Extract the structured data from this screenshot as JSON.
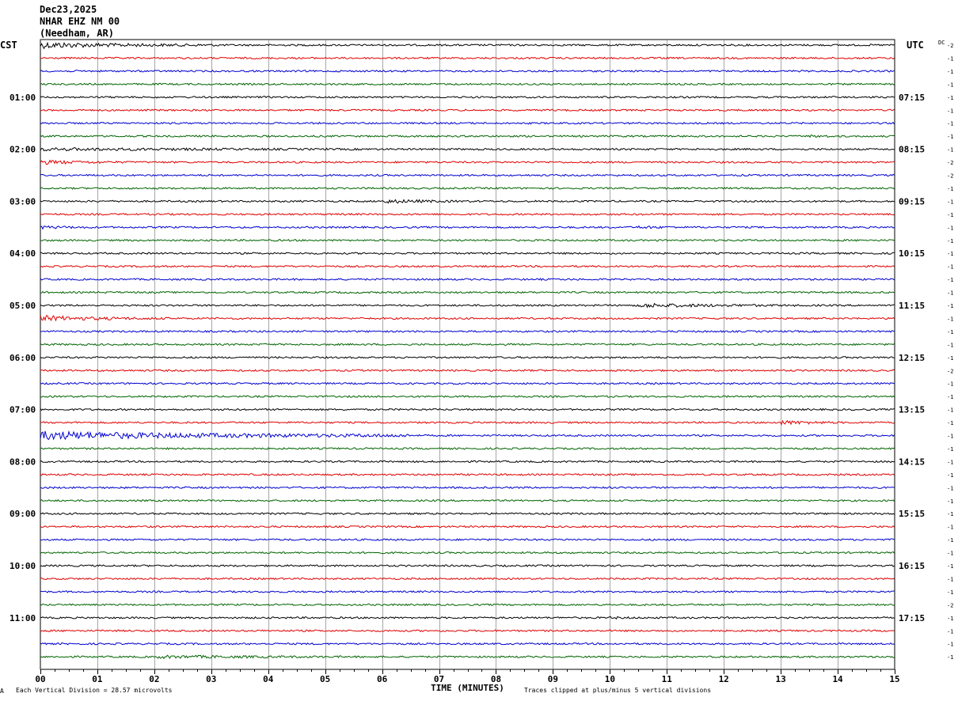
{
  "header": {
    "date": "Dec23,2025",
    "station": "NHAR EHZ NM 00",
    "location": "(Needham, AR)"
  },
  "left_tz": "CST",
  "right_tz": "UTC",
  "dc_label": "DC",
  "footer": {
    "division": "Each Vertical Division =   28.57 microvolts",
    "clip": "Traces clipped at plus/minus 5 vertical divisions",
    "corner": "A"
  },
  "colors": {
    "trace": [
      "#000000",
      "#e00000",
      "#0000d0",
      "#006400"
    ],
    "grid": "#808080"
  },
  "chart_data": {
    "type": "line",
    "title": "",
    "xlabel": "TIME (MINUTES)",
    "x_ticks": [
      "00",
      "01",
      "02",
      "03",
      "04",
      "05",
      "06",
      "07",
      "08",
      "09",
      "10",
      "11",
      "12",
      "13",
      "14",
      "15"
    ],
    "xlim": [
      0,
      15
    ],
    "rows": 48,
    "minutes_per_row": 15,
    "left_hour_labels": [
      "",
      "01:00",
      "02:00",
      "03:00",
      "04:00",
      "05:00",
      "06:00",
      "07:00",
      "08:00",
      "09:00",
      "10:00",
      "11:00"
    ],
    "right_hour_labels": [
      "",
      "07:15",
      "08:15",
      "09:15",
      "10:15",
      "11:15",
      "12:15",
      "13:15",
      "14:15",
      "15:15",
      "16:15",
      "17:15"
    ],
    "dc_offsets": [
      -2,
      -1,
      -1,
      -1,
      -1,
      -1,
      -1,
      -1,
      -1,
      -2,
      -2,
      -1,
      -1,
      -1,
      -1,
      -1,
      -1,
      -1,
      -1,
      -1,
      -1,
      -1,
      -1,
      -1,
      -1,
      -2,
      -1,
      -1,
      -1,
      -1,
      -1,
      -1,
      -1,
      -1,
      -1,
      -1,
      -1,
      -1,
      -1,
      -1,
      -1,
      -1,
      -1,
      -2,
      -1,
      -1,
      -1,
      -1
    ],
    "events": [
      {
        "row": 0,
        "start": 0,
        "end": 3.2,
        "amp": 4.5
      },
      {
        "row": 8,
        "start": 0,
        "end": 15,
        "amp": 2.2
      },
      {
        "row": 9,
        "start": 0,
        "end": 2.5,
        "amp": 3.0
      },
      {
        "row": 14,
        "start": 0,
        "end": 2.5,
        "amp": 2.2
      },
      {
        "row": 12,
        "start": 6,
        "end": 9,
        "amp": 2.8
      },
      {
        "row": 14,
        "start": 10.5,
        "end": 13,
        "amp": 2.0
      },
      {
        "row": 20,
        "start": 10.5,
        "end": 15,
        "amp": 3.0
      },
      {
        "row": 21,
        "start": 0,
        "end": 2.5,
        "amp": 4.0
      },
      {
        "row": 29,
        "start": 13,
        "end": 15,
        "amp": 3.0
      },
      {
        "row": 30,
        "start": 0,
        "end": 6.5,
        "amp": 6.0
      },
      {
        "row": 47,
        "start": 2,
        "end": 12,
        "amp": 2.2
      },
      {
        "row": 7,
        "start": 13.5,
        "end": 15,
        "amp": 2.0
      },
      {
        "row": 44,
        "start": 10,
        "end": 12,
        "amp": 1.8
      }
    ]
  }
}
